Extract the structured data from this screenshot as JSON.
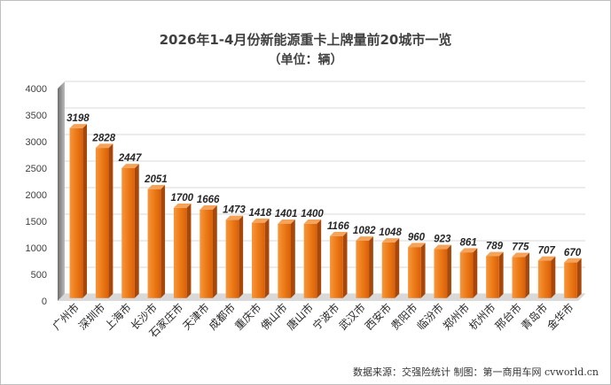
{
  "chart_data": {
    "type": "bar",
    "title": "2026年1-4月份新能源重卡上牌量前20城市一览",
    "subtitle": "（单位：辆）",
    "categories": [
      "广州市",
      "深圳市",
      "上海市",
      "长沙市",
      "石家庄市",
      "天津市",
      "成都市",
      "重庆市",
      "佛山市",
      "唐山市",
      "宁波市",
      "武汉市",
      "西安市",
      "贵阳市",
      "临汾市",
      "郑州市",
      "杭州市",
      "邢台市",
      "青岛市",
      "金华市"
    ],
    "values": [
      3198,
      2828,
      2447,
      2051,
      1700,
      1666,
      1473,
      1418,
      1401,
      1400,
      1166,
      1082,
      1048,
      960,
      923,
      861,
      789,
      775,
      707,
      670
    ],
    "ylim": [
      0,
      4000
    ],
    "yticks": [
      0,
      500,
      1000,
      1500,
      2000,
      2500,
      3000,
      3500,
      4000
    ],
    "grid": true,
    "legend": "none",
    "bar_color": "#e8700f"
  },
  "source_note": "数据来源：交强险统计   制图：第一商用车网 cvworld.cn"
}
